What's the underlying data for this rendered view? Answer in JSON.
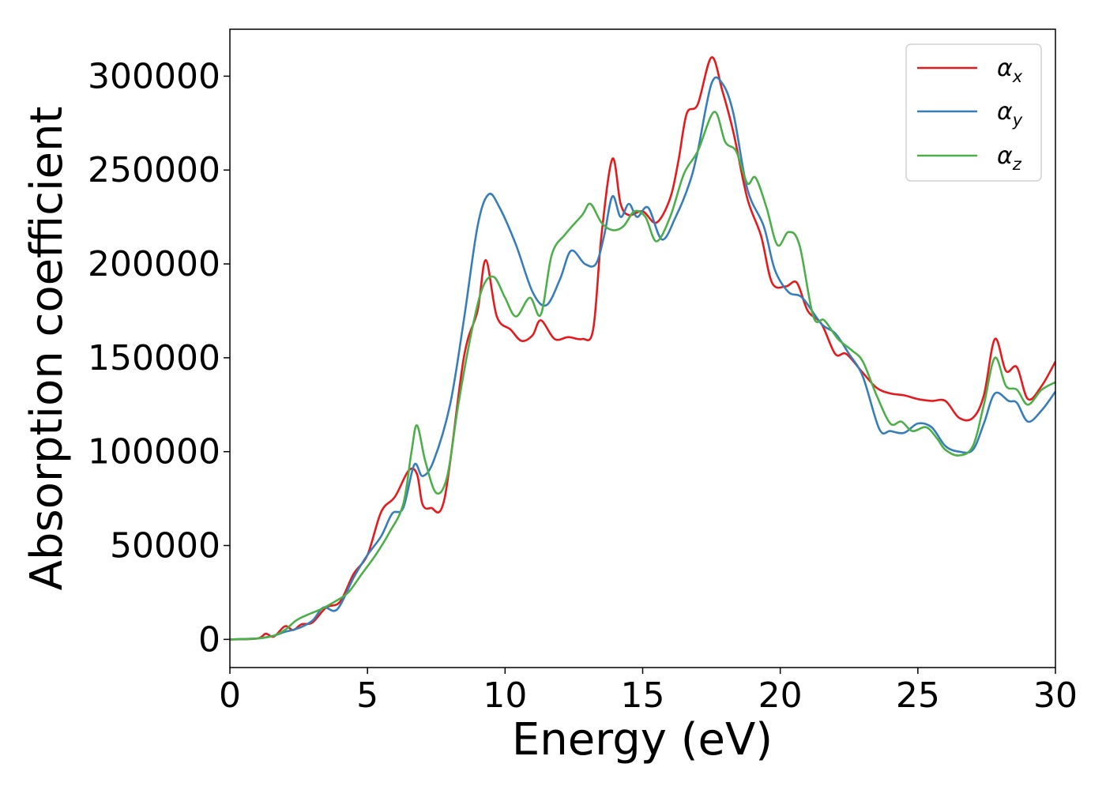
{
  "chart_data": {
    "type": "line",
    "title": "",
    "xlabel": "Energy (eV)",
    "ylabel": "Absorption coefficient",
    "xlim": [
      0,
      30
    ],
    "ylim": [
      -15000,
      325000
    ],
    "xticks": [
      0,
      5,
      10,
      15,
      20,
      25,
      30
    ],
    "yticks": [
      0,
      50000,
      100000,
      150000,
      200000,
      250000,
      300000
    ],
    "xtick_labels": [
      "0",
      "5",
      "10",
      "15",
      "20",
      "25",
      "30"
    ],
    "ytick_labels": [
      "0",
      "50000",
      "100000",
      "150000",
      "200000",
      "250000",
      "300000"
    ],
    "grid": false,
    "legend_position": "top-right",
    "series": [
      {
        "name": "αx",
        "name_main": "α",
        "name_sub": "x",
        "color": "#e41a1c",
        "points": [
          [
            0,
            0
          ],
          [
            1,
            500
          ],
          [
            1.3,
            3000
          ],
          [
            1.6,
            1500
          ],
          [
            2,
            7000
          ],
          [
            2.3,
            5000
          ],
          [
            2.6,
            8000
          ],
          [
            3,
            9000
          ],
          [
            3.5,
            17000
          ],
          [
            4,
            20000
          ],
          [
            4.5,
            35000
          ],
          [
            5,
            45000
          ],
          [
            5.5,
            68000
          ],
          [
            6,
            76000
          ],
          [
            6.5,
            90000
          ],
          [
            6.8,
            88000
          ],
          [
            7,
            72000
          ],
          [
            7.3,
            70000
          ],
          [
            7.8,
            75000
          ],
          [
            8.5,
            150000
          ],
          [
            9,
            175000
          ],
          [
            9.3,
            202000
          ],
          [
            9.7,
            172000
          ],
          [
            10.2,
            165000
          ],
          [
            10.6,
            159000
          ],
          [
            11,
            162000
          ],
          [
            11.3,
            170000
          ],
          [
            11.8,
            160000
          ],
          [
            12.3,
            161000
          ],
          [
            12.8,
            160000
          ],
          [
            13.2,
            165000
          ],
          [
            13.5,
            215000
          ],
          [
            13.9,
            256000
          ],
          [
            14.2,
            232000
          ],
          [
            14.5,
            226000
          ],
          [
            15,
            228000
          ],
          [
            15.5,
            222000
          ],
          [
            16,
            235000
          ],
          [
            16.3,
            255000
          ],
          [
            16.6,
            280000
          ],
          [
            17,
            285000
          ],
          [
            17.5,
            310000
          ],
          [
            17.9,
            292000
          ],
          [
            18.3,
            270000
          ],
          [
            18.8,
            235000
          ],
          [
            19.3,
            215000
          ],
          [
            19.7,
            190000
          ],
          [
            20.2,
            188000
          ],
          [
            20.6,
            190000
          ],
          [
            21,
            175000
          ],
          [
            21.5,
            168000
          ],
          [
            22,
            152000
          ],
          [
            22.4,
            152000
          ],
          [
            23,
            142000
          ],
          [
            23.5,
            134000
          ],
          [
            24,
            131000
          ],
          [
            24.5,
            130000
          ],
          [
            25,
            128000
          ],
          [
            25.5,
            127000
          ],
          [
            26,
            127000
          ],
          [
            26.5,
            118000
          ],
          [
            27,
            118000
          ],
          [
            27.4,
            130000
          ],
          [
            27.8,
            160000
          ],
          [
            28.2,
            143000
          ],
          [
            28.6,
            145000
          ],
          [
            29,
            128000
          ],
          [
            29.5,
            135000
          ],
          [
            30,
            148000
          ]
        ]
      },
      {
        "name": "αy",
        "name_main": "α",
        "name_sub": "y",
        "color": "#377eb8",
        "points": [
          [
            0,
            0
          ],
          [
            1,
            500
          ],
          [
            1.6,
            2000
          ],
          [
            2,
            4000
          ],
          [
            2.5,
            6000
          ],
          [
            3,
            10000
          ],
          [
            3.4,
            17000
          ],
          [
            3.9,
            16000
          ],
          [
            4.5,
            33000
          ],
          [
            5,
            45000
          ],
          [
            5.5,
            55000
          ],
          [
            5.9,
            67000
          ],
          [
            6.3,
            70000
          ],
          [
            6.7,
            93000
          ],
          [
            7,
            87000
          ],
          [
            7.4,
            95000
          ],
          [
            8,
            125000
          ],
          [
            8.5,
            170000
          ],
          [
            9,
            220000
          ],
          [
            9.4,
            237000
          ],
          [
            9.8,
            230000
          ],
          [
            10.4,
            210000
          ],
          [
            11,
            185000
          ],
          [
            11.5,
            178000
          ],
          [
            12,
            192000
          ],
          [
            12.4,
            207000
          ],
          [
            12.9,
            200000
          ],
          [
            13.3,
            200000
          ],
          [
            13.6,
            215000
          ],
          [
            13.9,
            236000
          ],
          [
            14.2,
            225000
          ],
          [
            14.5,
            232000
          ],
          [
            14.8,
            225000
          ],
          [
            15.2,
            230000
          ],
          [
            15.7,
            213000
          ],
          [
            16.2,
            225000
          ],
          [
            16.7,
            243000
          ],
          [
            17,
            260000
          ],
          [
            17.5,
            296000
          ],
          [
            17.9,
            296000
          ],
          [
            18.3,
            280000
          ],
          [
            18.8,
            240000
          ],
          [
            19.4,
            220000
          ],
          [
            19.8,
            197000
          ],
          [
            20.3,
            185000
          ],
          [
            20.8,
            182000
          ],
          [
            21.5,
            168000
          ],
          [
            22,
            163000
          ],
          [
            22.5,
            152000
          ],
          [
            23,
            140000
          ],
          [
            23.6,
            112000
          ],
          [
            24,
            111000
          ],
          [
            24.5,
            110000
          ],
          [
            25,
            115000
          ],
          [
            25.5,
            113000
          ],
          [
            26,
            103000
          ],
          [
            26.5,
            100000
          ],
          [
            27,
            101000
          ],
          [
            27.4,
            115000
          ],
          [
            27.8,
            131000
          ],
          [
            28.3,
            127000
          ],
          [
            28.6,
            126000
          ],
          [
            29,
            116000
          ],
          [
            29.5,
            122000
          ],
          [
            30,
            132000
          ]
        ]
      },
      {
        "name": "αz",
        "name_main": "α",
        "name_sub": "z",
        "color": "#4daf4a",
        "points": [
          [
            0,
            0
          ],
          [
            1,
            500
          ],
          [
            1.6,
            2000
          ],
          [
            2,
            5000
          ],
          [
            2.4,
            10000
          ],
          [
            2.8,
            13000
          ],
          [
            3.3,
            16000
          ],
          [
            3.8,
            20000
          ],
          [
            4.3,
            25000
          ],
          [
            4.8,
            35000
          ],
          [
            5.3,
            45000
          ],
          [
            5.8,
            57000
          ],
          [
            6.3,
            72000
          ],
          [
            6.6,
            100000
          ],
          [
            6.8,
            114000
          ],
          [
            7.1,
            95000
          ],
          [
            7.5,
            78000
          ],
          [
            7.9,
            87000
          ],
          [
            8.3,
            125000
          ],
          [
            8.8,
            165000
          ],
          [
            9.2,
            188000
          ],
          [
            9.6,
            193000
          ],
          [
            10,
            182000
          ],
          [
            10.4,
            172000
          ],
          [
            10.9,
            182000
          ],
          [
            11.3,
            173000
          ],
          [
            11.7,
            205000
          ],
          [
            12.2,
            216000
          ],
          [
            12.8,
            226000
          ],
          [
            13.1,
            232000
          ],
          [
            13.5,
            222000
          ],
          [
            13.9,
            218000
          ],
          [
            14.3,
            220000
          ],
          [
            14.7,
            228000
          ],
          [
            15.1,
            225000
          ],
          [
            15.5,
            212000
          ],
          [
            16,
            225000
          ],
          [
            16.5,
            248000
          ],
          [
            17,
            260000
          ],
          [
            17.6,
            281000
          ],
          [
            18,
            265000
          ],
          [
            18.4,
            260000
          ],
          [
            18.8,
            243000
          ],
          [
            19.1,
            246000
          ],
          [
            19.5,
            230000
          ],
          [
            19.9,
            210000
          ],
          [
            20.3,
            217000
          ],
          [
            20.7,
            210000
          ],
          [
            21.2,
            172000
          ],
          [
            21.6,
            170000
          ],
          [
            22.1,
            160000
          ],
          [
            22.6,
            154000
          ],
          [
            23,
            148000
          ],
          [
            23.5,
            130000
          ],
          [
            24,
            115000
          ],
          [
            24.4,
            116000
          ],
          [
            24.8,
            111000
          ],
          [
            25.3,
            113000
          ],
          [
            25.7,
            107000
          ],
          [
            26,
            101000
          ],
          [
            26.5,
            98000
          ],
          [
            27,
            103000
          ],
          [
            27.4,
            125000
          ],
          [
            27.8,
            150000
          ],
          [
            28.2,
            135000
          ],
          [
            28.6,
            133000
          ],
          [
            29,
            125000
          ],
          [
            29.5,
            133000
          ],
          [
            30,
            137000
          ]
        ]
      }
    ]
  }
}
